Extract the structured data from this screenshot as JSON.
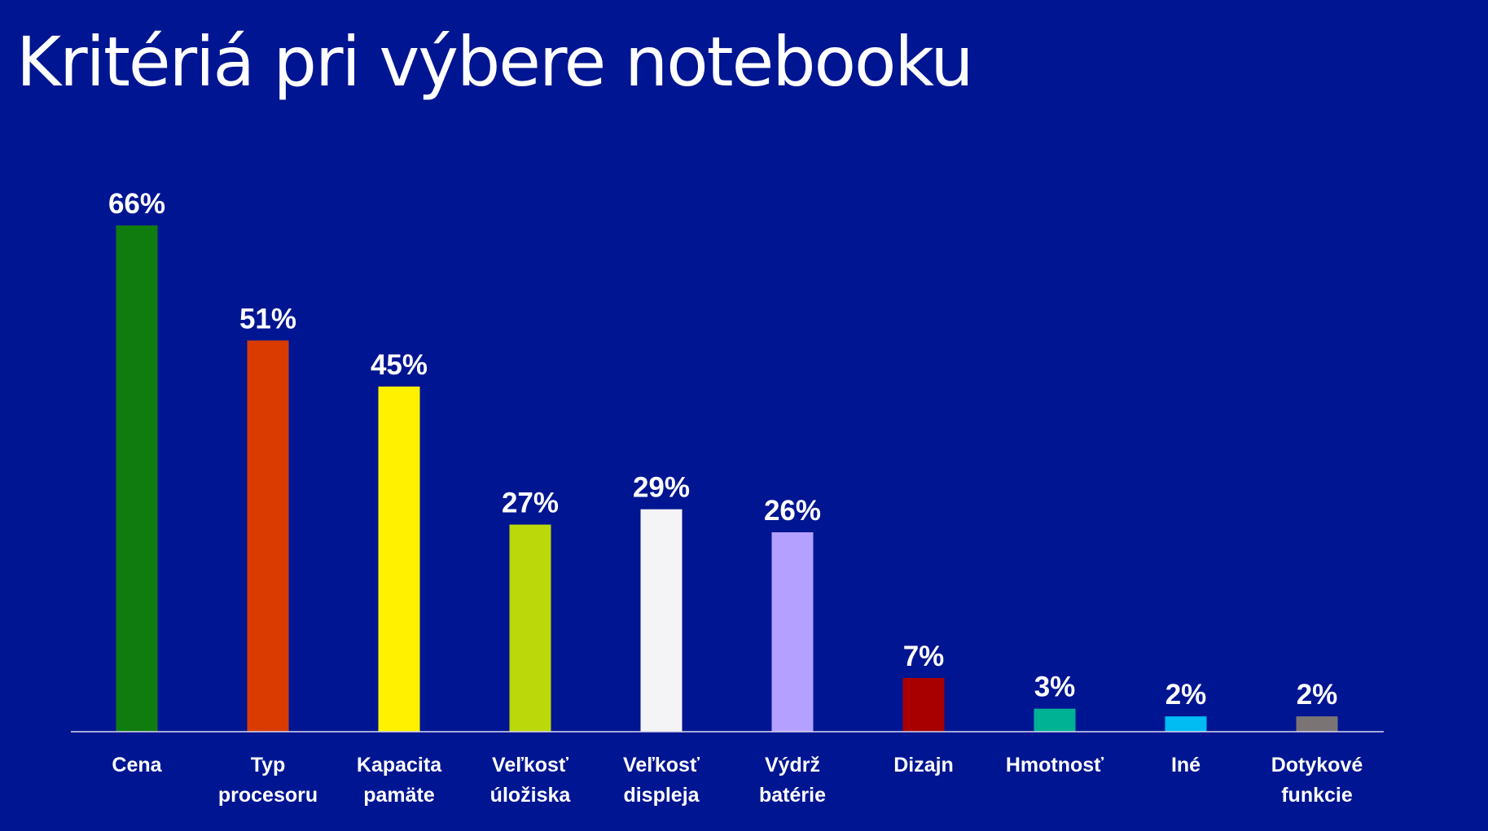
{
  "slide": {
    "title": "Kritériá pri výbere notebooku",
    "background": "#001591"
  },
  "chart_data": {
    "type": "bar",
    "title": "Kritériá pri výbere notebooku",
    "xlabel": "",
    "ylabel": "",
    "ylim": [
      0,
      66
    ],
    "grid": false,
    "legend": "none",
    "value_suffix": "%",
    "categories": [
      [
        "Cena"
      ],
      [
        "Typ",
        "procesoru"
      ],
      [
        "Kapacita",
        "pamäte"
      ],
      [
        "Veľkosť",
        "úložiska"
      ],
      [
        "Veľkosť",
        "displeja"
      ],
      [
        "Výdrž",
        "batérie"
      ],
      [
        "Dizajn"
      ],
      [
        "Hmotnosť"
      ],
      [
        "Iné"
      ],
      [
        "Dotykové",
        "funkcie"
      ]
    ],
    "values": [
      66,
      51,
      45,
      27,
      29,
      26,
      7,
      3,
      2,
      2
    ],
    "colors": [
      "#107C10",
      "#DA3B01",
      "#FFF100",
      "#BAD80A",
      "#F4F3F5",
      "#B4A0FF",
      "#A80000",
      "#00B294",
      "#00BCF2",
      "#7A7574"
    ]
  }
}
